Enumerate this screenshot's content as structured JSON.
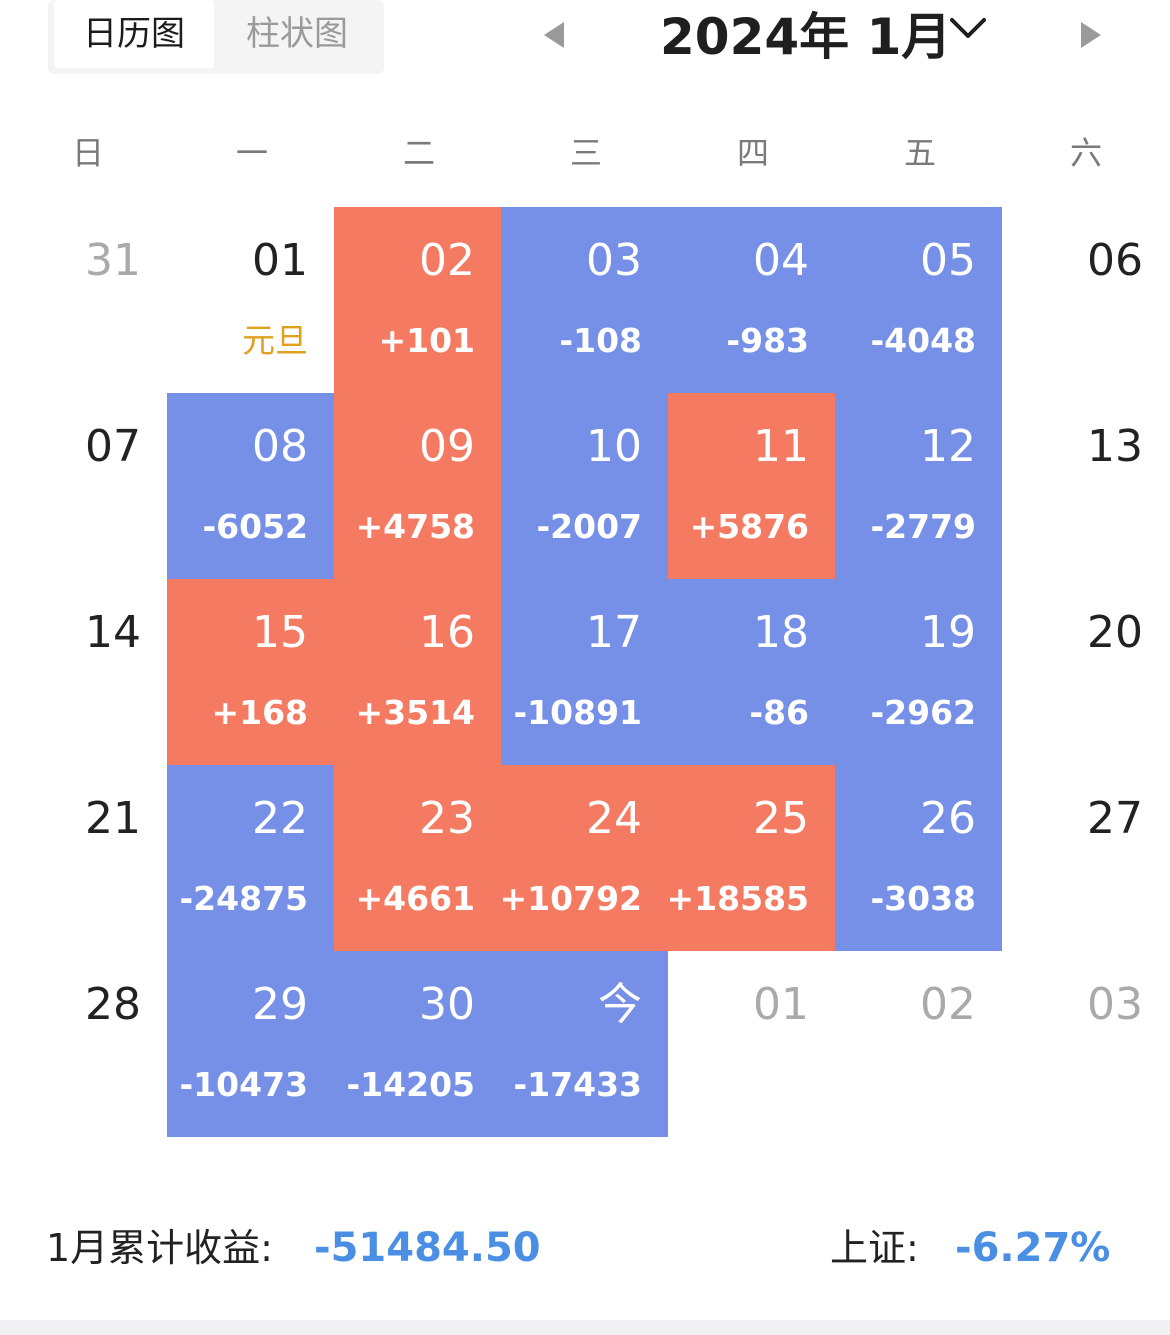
{
  "tabs": [
    {
      "label": "日历图",
      "active": true
    },
    {
      "label": "柱状图",
      "active": false
    }
  ],
  "header": {
    "month_label": "2024年 1月"
  },
  "weekdays": [
    "日",
    "一",
    "二",
    "三",
    "四",
    "五",
    "六"
  ],
  "weeks": [
    [
      {
        "day": "31",
        "value": "",
        "type": "other"
      },
      {
        "day": "01",
        "value": "元旦",
        "type": "holiday"
      },
      {
        "day": "02",
        "value": "+101",
        "type": "pos"
      },
      {
        "day": "03",
        "value": "-108",
        "type": "neg"
      },
      {
        "day": "04",
        "value": "-983",
        "type": "neg"
      },
      {
        "day": "05",
        "value": "-4048",
        "type": "neg"
      },
      {
        "day": "06",
        "value": "",
        "type": "plain"
      }
    ],
    [
      {
        "day": "07",
        "value": "",
        "type": "plain"
      },
      {
        "day": "08",
        "value": "-6052",
        "type": "neg"
      },
      {
        "day": "09",
        "value": "+4758",
        "type": "pos"
      },
      {
        "day": "10",
        "value": "-2007",
        "type": "neg"
      },
      {
        "day": "11",
        "value": "+5876",
        "type": "pos"
      },
      {
        "day": "12",
        "value": "-2779",
        "type": "neg"
      },
      {
        "day": "13",
        "value": "",
        "type": "plain"
      }
    ],
    [
      {
        "day": "14",
        "value": "",
        "type": "plain"
      },
      {
        "day": "15",
        "value": "+168",
        "type": "pos"
      },
      {
        "day": "16",
        "value": "+3514",
        "type": "pos"
      },
      {
        "day": "17",
        "value": "-10891",
        "type": "neg"
      },
      {
        "day": "18",
        "value": "-86",
        "type": "neg"
      },
      {
        "day": "19",
        "value": "-2962",
        "type": "neg"
      },
      {
        "day": "20",
        "value": "",
        "type": "plain"
      }
    ],
    [
      {
        "day": "21",
        "value": "",
        "type": "plain"
      },
      {
        "day": "22",
        "value": "-24875",
        "type": "neg"
      },
      {
        "day": "23",
        "value": "+4661",
        "type": "pos"
      },
      {
        "day": "24",
        "value": "+10792",
        "type": "pos"
      },
      {
        "day": "25",
        "value": "+18585",
        "type": "pos"
      },
      {
        "day": "26",
        "value": "-3038",
        "type": "neg"
      },
      {
        "day": "27",
        "value": "",
        "type": "plain"
      }
    ],
    [
      {
        "day": "28",
        "value": "",
        "type": "plain"
      },
      {
        "day": "29",
        "value": "-10473",
        "type": "neg"
      },
      {
        "day": "30",
        "value": "-14205",
        "type": "neg"
      },
      {
        "day": "今",
        "value": "-17433",
        "type": "neg"
      },
      {
        "day": "01",
        "value": "",
        "type": "other"
      },
      {
        "day": "02",
        "value": "",
        "type": "other"
      },
      {
        "day": "03",
        "value": "",
        "type": "other"
      }
    ]
  ],
  "footer": {
    "month_profit_label": "1月累计收益:",
    "month_profit_value": "-51484.50",
    "index_label": "上证:",
    "index_value": "-6.27%"
  },
  "colors": {
    "positive": "#f57a62",
    "negative": "#7590e6",
    "accent_text": "#4a8fe4",
    "holiday": "#e0a020"
  },
  "icons": {
    "prev": "triangle-left-icon",
    "next": "triangle-right-icon",
    "dropdown": "chevron-down-icon"
  }
}
